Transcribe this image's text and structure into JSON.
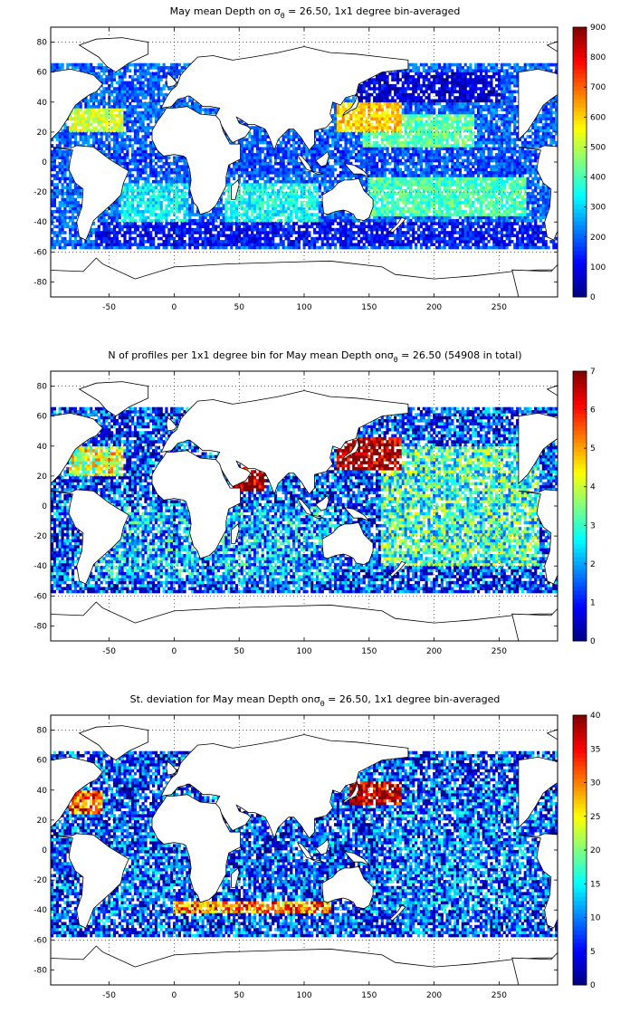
{
  "chart_data": [
    {
      "type": "heatmap",
      "title": "May mean Depth on σθ = 26.50, 1x1 degree bin-averaged",
      "title_parts": {
        "before": "May mean Depth on ",
        "sigma": "σ",
        "sub": "θ",
        "after": " = 26.50, 1x1 degree bin-averaged"
      },
      "xlim": [
        -95,
        295
      ],
      "ylim": [
        -90,
        90
      ],
      "xticks": [
        -50,
        0,
        50,
        100,
        150,
        200,
        250
      ],
      "yticks": [
        80,
        60,
        40,
        20,
        0,
        -20,
        -40,
        -60,
        -80
      ],
      "grid": true,
      "colorbar": {
        "min": 0,
        "max": 900,
        "ticks": [
          900,
          800,
          700,
          600,
          500,
          400,
          300,
          200,
          100,
          0
        ],
        "colormap": "jet"
      },
      "regions": [
        {
          "lon": [
            125,
            175
          ],
          "lat": [
            20,
            40
          ],
          "value": 600
        },
        {
          "lon": [
            145,
            230
          ],
          "lat": [
            10,
            32
          ],
          "value": 420
        },
        {
          "lon": [
            150,
            270
          ],
          "lat": [
            -35,
            -10
          ],
          "value": 400
        },
        {
          "lon": [
            -80,
            -40
          ],
          "lat": [
            20,
            35
          ],
          "value": 520
        },
        {
          "lon": [
            -40,
            10
          ],
          "lat": [
            -40,
            -15
          ],
          "value": 330
        },
        {
          "lon": [
            40,
            110
          ],
          "lat": [
            -40,
            -15
          ],
          "value": 350
        },
        {
          "lon": [
            -60,
            290
          ],
          "lat": [
            -55,
            -40
          ],
          "value": 120
        },
        {
          "lon": [
            140,
            250
          ],
          "lat": [
            40,
            60
          ],
          "value": 80
        },
        {
          "lon": [
            -95,
            290
          ],
          "lat": [
            -10,
            10
          ],
          "value": 180
        }
      ]
    },
    {
      "type": "heatmap",
      "title": "N of profiles per 1x1 degree bin for May mean Depth on σθ = 26.50 (54908 in total)",
      "title_parts": {
        "before": "N of profiles per 1x1 degree bin for May mean Depth on",
        "sigma": "σ",
        "sub": "θ",
        "after": " = 26.50 (54908 in total)"
      },
      "xlim": [
        -95,
        295
      ],
      "ylim": [
        -90,
        90
      ],
      "xticks": [
        -50,
        0,
        50,
        100,
        150,
        200,
        250
      ],
      "yticks": [
        80,
        60,
        40,
        20,
        0,
        -20,
        -40,
        -60,
        -80
      ],
      "grid": true,
      "colorbar": {
        "min": 0,
        "max": 7,
        "ticks": [
          7,
          6,
          5,
          4,
          3,
          2,
          1,
          0
        ],
        "colormap": "jet"
      },
      "regions": [
        {
          "lon": [
            125,
            175
          ],
          "lat": [
            25,
            45
          ],
          "value": 7
        },
        {
          "lon": [
            45,
            70
          ],
          "lat": [
            10,
            25
          ],
          "value": 7
        },
        {
          "lon": [
            -80,
            -40
          ],
          "lat": [
            20,
            40
          ],
          "value": 4
        },
        {
          "lon": [
            160,
            280
          ],
          "lat": [
            -40,
            40
          ],
          "value": 3
        },
        {
          "lon": [
            -60,
            20
          ],
          "lat": [
            -50,
            0
          ],
          "value": 2
        },
        {
          "lon": [
            30,
            120
          ],
          "lat": [
            -50,
            0
          ],
          "value": 2
        }
      ]
    },
    {
      "type": "heatmap",
      "title": "St. deviation for May mean Depth on σθ = 26.50, 1x1 degree bin-averaged",
      "title_parts": {
        "before": "St. deviation for May mean Depth on",
        "sigma": "σ",
        "sub": "θ",
        "after": " = 26.50, 1x1 degree bin-averaged"
      },
      "xlim": [
        -95,
        295
      ],
      "ylim": [
        -90,
        90
      ],
      "xticks": [
        -50,
        0,
        50,
        100,
        150,
        200,
        250
      ],
      "yticks": [
        80,
        60,
        40,
        20,
        0,
        -20,
        -40,
        -60,
        -80
      ],
      "grid": true,
      "colorbar": {
        "min": 0,
        "max": 40,
        "ticks": [
          40,
          35,
          30,
          25,
          20,
          15,
          10,
          5,
          0
        ],
        "colormap": "jet"
      },
      "regions": [
        {
          "lon": [
            135,
            175
          ],
          "lat": [
            30,
            45
          ],
          "value": 38
        },
        {
          "lon": [
            -80,
            -55
          ],
          "lat": [
            25,
            40
          ],
          "value": 32
        },
        {
          "lon": [
            0,
            120
          ],
          "lat": [
            -42,
            -35
          ],
          "value": 30
        },
        {
          "lon": [
            160,
            280
          ],
          "lat": [
            -40,
            40
          ],
          "value": 9
        },
        {
          "lon": [
            -60,
            20
          ],
          "lat": [
            -50,
            0
          ],
          "value": 8
        }
      ]
    }
  ]
}
